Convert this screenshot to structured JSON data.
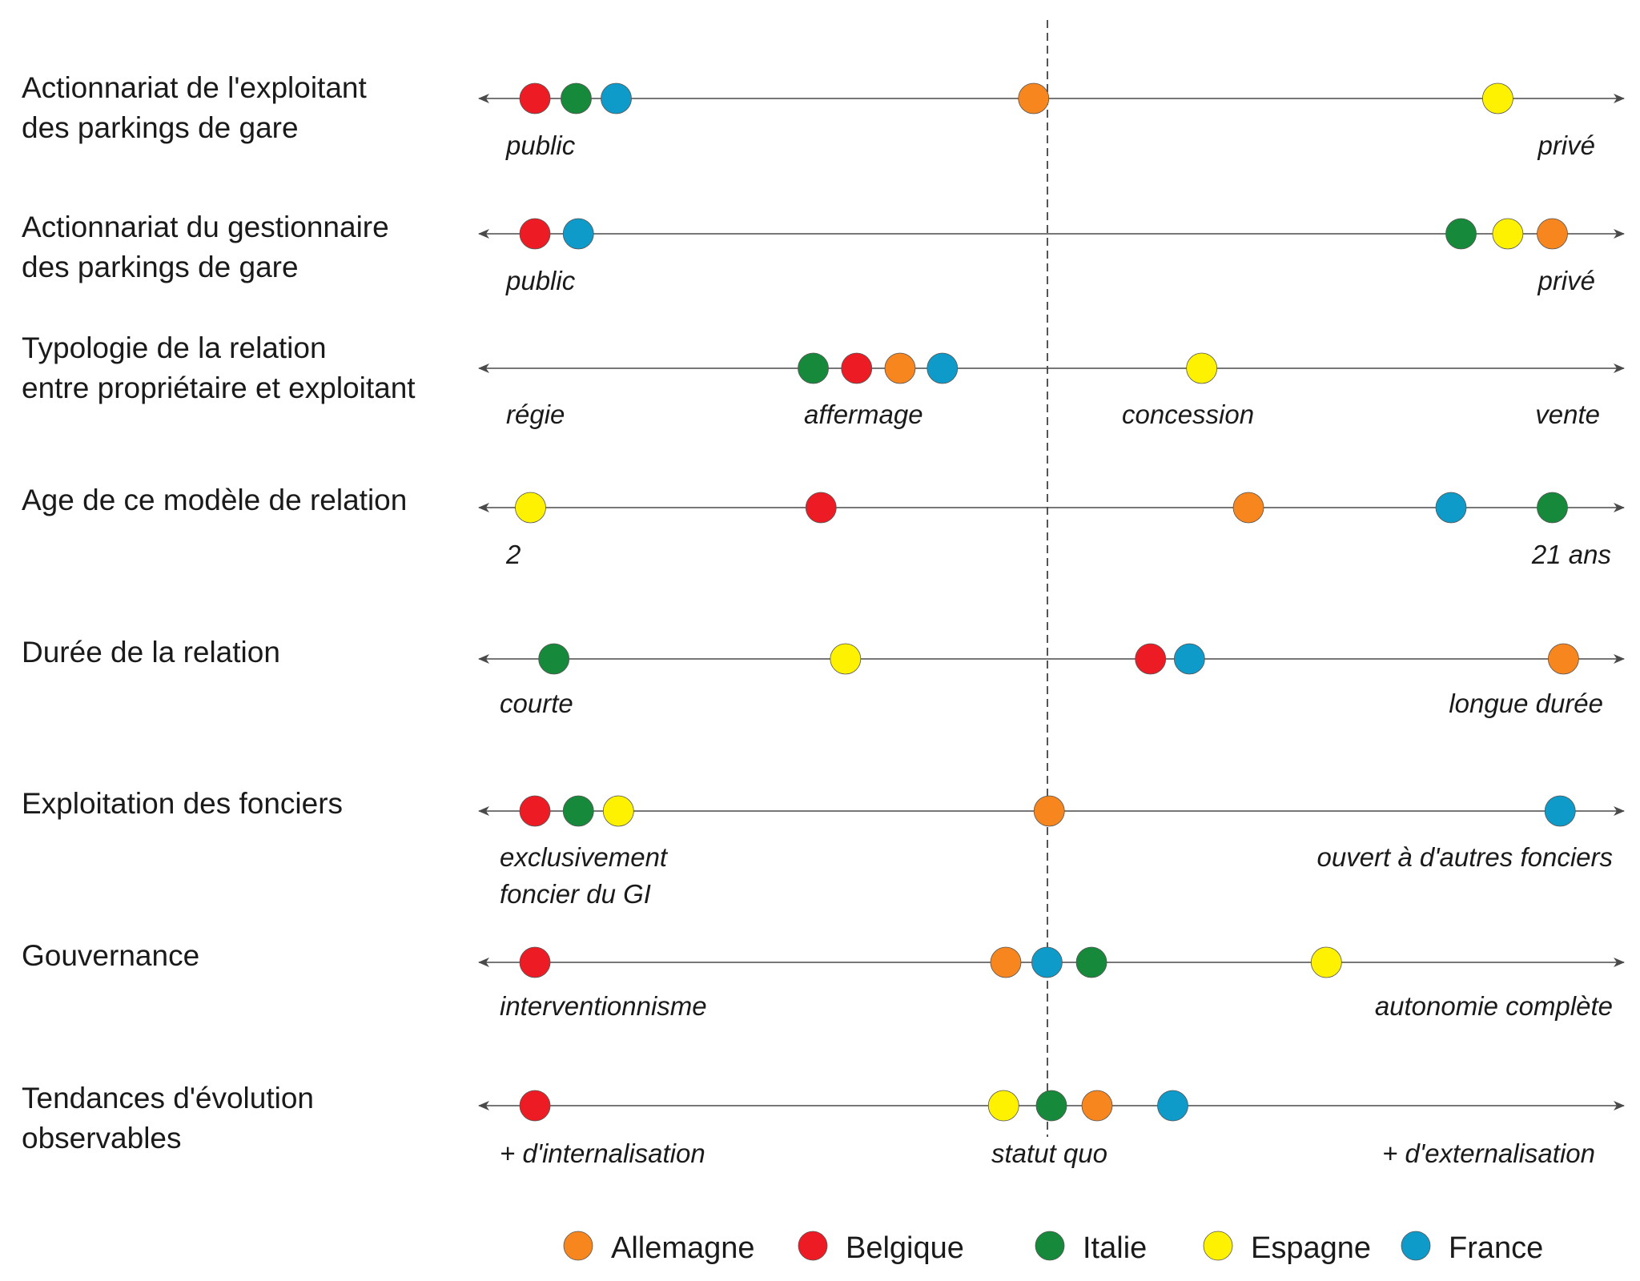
{
  "colors": {
    "Allemagne": "#f7861e",
    "Belgique": "#ed1c24",
    "Italie": "#168a3a",
    "Espagne": "#fff200",
    "France": "#0e9bc9",
    "line": "#4a4a4a",
    "reference_line": "#555555"
  },
  "rows": [
    {
      "title": [
        "Actionnariat de l'exploitant",
        "des parkings de gare"
      ],
      "labels": [
        "public",
        "privé"
      ],
      "points": [
        {
          "country": "Belgique",
          "pos": 0.036
        },
        {
          "country": "Italie",
          "pos": 0.073
        },
        {
          "country": "France",
          "pos": 0.109
        },
        {
          "country": "Allemagne",
          "pos": 0.484
        },
        {
          "country": "Espagne",
          "pos": 0.901
        }
      ]
    },
    {
      "title": [
        "Actionnariat du gestionnaire",
        "des parkings de gare"
      ],
      "labels": [
        "public",
        "privé"
      ],
      "points": [
        {
          "country": "Belgique",
          "pos": 0.036
        },
        {
          "country": "France",
          "pos": 0.075
        },
        {
          "country": "Italie",
          "pos": 0.868
        },
        {
          "country": "Espagne",
          "pos": 0.91
        },
        {
          "country": "Allemagne",
          "pos": 0.95
        }
      ]
    },
    {
      "title": [
        "Typologie de la relation",
        "entre propriétaire et exploitant"
      ],
      "labels": [
        "régie",
        "affermage",
        "concession",
        "vente"
      ],
      "points": [
        {
          "country": "Italie",
          "pos": 0.286
        },
        {
          "country": "Belgique",
          "pos": 0.325
        },
        {
          "country": "Allemagne",
          "pos": 0.364
        },
        {
          "country": "France",
          "pos": 0.402
        },
        {
          "country": "Espagne",
          "pos": 0.635
        }
      ]
    },
    {
      "title": [
        "Age de ce modèle de relation"
      ],
      "labels": [
        "2",
        "21 ans"
      ],
      "points": [
        {
          "country": "Espagne",
          "pos": 0.032
        },
        {
          "country": "Belgique",
          "pos": 0.293
        },
        {
          "country": "Allemagne",
          "pos": 0.677
        },
        {
          "country": "France",
          "pos": 0.859
        },
        {
          "country": "Italie",
          "pos": 0.95
        }
      ]
    },
    {
      "title": [
        "Durée de la relation"
      ],
      "labels": [
        "courte",
        "longue durée"
      ],
      "points": [
        {
          "country": "Italie",
          "pos": 0.053
        },
        {
          "country": "Espagne",
          "pos": 0.315
        },
        {
          "country": "Belgique",
          "pos": 0.589
        },
        {
          "country": "France",
          "pos": 0.624
        },
        {
          "country": "Allemagne",
          "pos": 0.96
        }
      ]
    },
    {
      "title": [
        "Exploitation des fonciers"
      ],
      "labels": [
        "exclusivement foncier du GI",
        "ouvert à d'autres fonciers"
      ],
      "points": [
        {
          "country": "Belgique",
          "pos": 0.036
        },
        {
          "country": "Italie",
          "pos": 0.075
        },
        {
          "country": "Espagne",
          "pos": 0.111
        },
        {
          "country": "Allemagne",
          "pos": 0.498
        },
        {
          "country": "France",
          "pos": 0.957
        }
      ]
    },
    {
      "title": [
        "Gouvernance"
      ],
      "labels": [
        "interventionnisme",
        "autonomie complète"
      ],
      "points": [
        {
          "country": "Belgique",
          "pos": 0.036
        },
        {
          "country": "Allemagne",
          "pos": 0.459
        },
        {
          "country": "France",
          "pos": 0.496
        },
        {
          "country": "Italie",
          "pos": 0.536
        },
        {
          "country": "Espagne",
          "pos": 0.747
        }
      ]
    },
    {
      "title": [
        "Tendances d'évolution",
        "observables"
      ],
      "labels": [
        "+ d'internalisation",
        "statut quo",
        "+ d'externalisation"
      ],
      "points": [
        {
          "country": "Belgique",
          "pos": 0.036
        },
        {
          "country": "Espagne",
          "pos": 0.457
        },
        {
          "country": "Italie",
          "pos": 0.5
        },
        {
          "country": "Allemagne",
          "pos": 0.541
        },
        {
          "country": "France",
          "pos": 0.609
        }
      ]
    }
  ],
  "legend": [
    "Allemagne",
    "Belgique",
    "Italie",
    "Espagne",
    "France"
  ]
}
